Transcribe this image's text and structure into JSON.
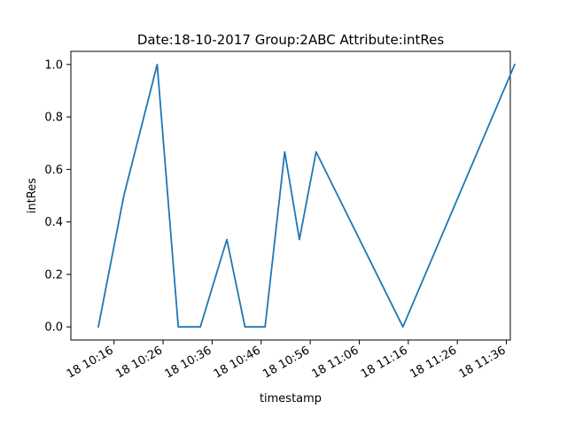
{
  "chart_data": {
    "type": "line",
    "title": "Date:18-10-2017  Group:2ABC Attribute:intRes",
    "xlabel": "timestamp",
    "ylabel": "intRes",
    "xlim_minutes": [
      -8.8,
      80.8
    ],
    "ylim": [
      -0.05,
      1.05
    ],
    "x_tick_minutes": [
      0,
      10,
      20,
      30,
      40,
      50,
      60,
      70,
      80
    ],
    "x_tick_labels": [
      "18 10:16",
      "18 10:26",
      "18 10:36",
      "18 10:46",
      "18 10:56",
      "18 11:06",
      "18 11:16",
      "18 11:26",
      "18 11:36"
    ],
    "y_ticks": [
      0.0,
      0.2,
      0.4,
      0.6,
      0.8,
      1.0
    ],
    "y_tick_labels": [
      "0.0",
      "0.2",
      "0.4",
      "0.6",
      "0.8",
      "1.0"
    ],
    "series": [
      {
        "name": "intRes",
        "color": "#1f77b4",
        "x_minutes": [
          -3.2,
          2.0,
          8.8,
          13.1,
          17.6,
          23.0,
          26.7,
          30.8,
          34.8,
          37.8,
          41.2,
          58.9,
          81.7
        ],
        "values": [
          0.0,
          0.5,
          1.0,
          0.0,
          0.0,
          0.333,
          0.0,
          0.0,
          0.667,
          0.333,
          0.667,
          0.0,
          1.0
        ]
      }
    ]
  }
}
